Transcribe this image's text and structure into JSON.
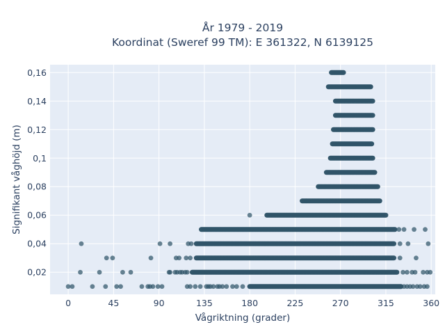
{
  "chart_data": {
    "type": "scatter",
    "title_line1": "År 1979 - 2019",
    "title_line2": "Koordinat (Sweref 99 TM): E 361322, N 6139125",
    "xlabel": "Vågriktning (grader)",
    "ylabel": "Signifikant våghöjd (m)",
    "xlim": [
      -18,
      364
    ],
    "ylim": [
      0.0045,
      0.1655
    ],
    "x_ticks": [
      0,
      45,
      90,
      135,
      180,
      225,
      270,
      315,
      360
    ],
    "y_ticks": [
      0.02,
      0.04,
      0.06,
      0.08,
      0.1,
      0.12,
      0.14,
      0.16
    ],
    "y_tick_labels": [
      "0,02",
      "0,04",
      "0,06",
      "0,08",
      "0,1",
      "0,12",
      "0,14",
      "0,16"
    ],
    "grid": true,
    "marker_color": "#2f5468",
    "bands": [
      {
        "y": 0.16,
        "x_min": 261,
        "x_max": 273
      },
      {
        "y": 0.15,
        "x_min": 258,
        "x_max": 300
      },
      {
        "y": 0.14,
        "x_min": 265,
        "x_max": 302
      },
      {
        "y": 0.13,
        "x_min": 265,
        "x_max": 302
      },
      {
        "y": 0.12,
        "x_min": 263,
        "x_max": 302
      },
      {
        "y": 0.11,
        "x_min": 262,
        "x_max": 301
      },
      {
        "y": 0.1,
        "x_min": 260,
        "x_max": 302
      },
      {
        "y": 0.09,
        "x_min": 256,
        "x_max": 304
      },
      {
        "y": 0.08,
        "x_min": 248,
        "x_max": 307
      },
      {
        "y": 0.07,
        "x_min": 232,
        "x_max": 309
      },
      {
        "y": 0.06,
        "x_min": 197,
        "x_max": 315
      },
      {
        "y": 0.05,
        "x_min": 132,
        "x_max": 324
      },
      {
        "y": 0.04,
        "x_min": 127,
        "x_max": 323
      },
      {
        "y": 0.03,
        "x_min": 127,
        "x_max": 323
      },
      {
        "y": 0.02,
        "x_min": 123,
        "x_max": 326
      },
      {
        "y": 0.01,
        "x_min": 180,
        "x_max": 330
      }
    ],
    "points": [
      {
        "x": 236,
        "y": 0.07
      },
      {
        "x": 180,
        "y": 0.06
      },
      {
        "x": 328,
        "y": 0.05
      },
      {
        "x": 333,
        "y": 0.05
      },
      {
        "x": 343,
        "y": 0.05
      },
      {
        "x": 354,
        "y": 0.05
      },
      {
        "x": 13,
        "y": 0.04
      },
      {
        "x": 91,
        "y": 0.04
      },
      {
        "x": 101,
        "y": 0.04
      },
      {
        "x": 119,
        "y": 0.04
      },
      {
        "x": 122,
        "y": 0.04
      },
      {
        "x": 329,
        "y": 0.04
      },
      {
        "x": 337,
        "y": 0.04
      },
      {
        "x": 357,
        "y": 0.04
      },
      {
        "x": 38,
        "y": 0.03
      },
      {
        "x": 44,
        "y": 0.03
      },
      {
        "x": 82,
        "y": 0.03
      },
      {
        "x": 107,
        "y": 0.03
      },
      {
        "x": 110,
        "y": 0.03
      },
      {
        "x": 117,
        "y": 0.03
      },
      {
        "x": 121,
        "y": 0.03
      },
      {
        "x": 329,
        "y": 0.03
      },
      {
        "x": 345,
        "y": 0.03
      },
      {
        "x": 12,
        "y": 0.02
      },
      {
        "x": 31,
        "y": 0.02
      },
      {
        "x": 54,
        "y": 0.02
      },
      {
        "x": 62,
        "y": 0.02
      },
      {
        "x": 100,
        "y": 0.02
      },
      {
        "x": 101,
        "y": 0.02
      },
      {
        "x": 106,
        "y": 0.02
      },
      {
        "x": 108,
        "y": 0.02
      },
      {
        "x": 111,
        "y": 0.02
      },
      {
        "x": 113,
        "y": 0.02
      },
      {
        "x": 116,
        "y": 0.02
      },
      {
        "x": 118,
        "y": 0.02
      },
      {
        "x": 332,
        "y": 0.02
      },
      {
        "x": 336,
        "y": 0.02
      },
      {
        "x": 341,
        "y": 0.02
      },
      {
        "x": 344,
        "y": 0.02
      },
      {
        "x": 352,
        "y": 0.02
      },
      {
        "x": 356,
        "y": 0.02
      },
      {
        "x": 359,
        "y": 0.02
      },
      {
        "x": 0,
        "y": 0.01
      },
      {
        "x": 4,
        "y": 0.01
      },
      {
        "x": 24,
        "y": 0.01
      },
      {
        "x": 37,
        "y": 0.01
      },
      {
        "x": 48,
        "y": 0.01
      },
      {
        "x": 52,
        "y": 0.01
      },
      {
        "x": 73,
        "y": 0.01
      },
      {
        "x": 79,
        "y": 0.01
      },
      {
        "x": 81,
        "y": 0.01
      },
      {
        "x": 84,
        "y": 0.01
      },
      {
        "x": 89,
        "y": 0.01
      },
      {
        "x": 93,
        "y": 0.01
      },
      {
        "x": 118,
        "y": 0.01
      },
      {
        "x": 121,
        "y": 0.01
      },
      {
        "x": 126,
        "y": 0.01
      },
      {
        "x": 131,
        "y": 0.01
      },
      {
        "x": 137,
        "y": 0.01
      },
      {
        "x": 139,
        "y": 0.01
      },
      {
        "x": 141,
        "y": 0.01
      },
      {
        "x": 144,
        "y": 0.01
      },
      {
        "x": 148,
        "y": 0.01
      },
      {
        "x": 150,
        "y": 0.01
      },
      {
        "x": 153,
        "y": 0.01
      },
      {
        "x": 157,
        "y": 0.01
      },
      {
        "x": 163,
        "y": 0.01
      },
      {
        "x": 167,
        "y": 0.01
      },
      {
        "x": 173,
        "y": 0.01
      },
      {
        "x": 333,
        "y": 0.01
      },
      {
        "x": 336,
        "y": 0.01
      },
      {
        "x": 339,
        "y": 0.01
      },
      {
        "x": 342,
        "y": 0.01
      },
      {
        "x": 346,
        "y": 0.01
      },
      {
        "x": 349,
        "y": 0.01
      },
      {
        "x": 353,
        "y": 0.01
      },
      {
        "x": 356,
        "y": 0.01
      }
    ]
  }
}
